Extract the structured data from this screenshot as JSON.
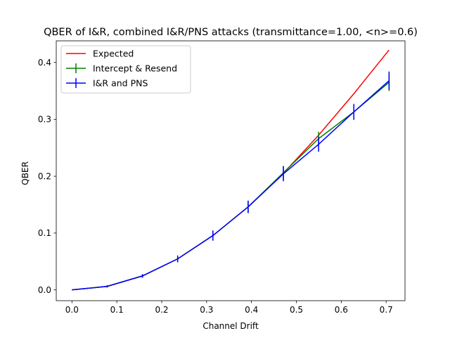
{
  "chart_data": {
    "type": "line",
    "title": "QBER of I&R, combined I&R/PNS attacks (transmittance=1.00, <n>=0.6)",
    "xlabel": "Channel Drift",
    "ylabel": "QBER",
    "xlim": [
      -0.035,
      0.742
    ],
    "ylim": [
      -0.019,
      0.438
    ],
    "xticks": [
      0.0,
      0.1,
      0.2,
      0.3,
      0.4,
      0.5,
      0.6,
      0.7
    ],
    "yticks": [
      0.0,
      0.1,
      0.2,
      0.3,
      0.4
    ],
    "xtick_labels": [
      "0.0",
      "0.1",
      "0.2",
      "0.3",
      "0.4",
      "0.5",
      "0.6",
      "0.7"
    ],
    "ytick_labels": [
      "0.0",
      "0.1",
      "0.2",
      "0.3",
      "0.4"
    ],
    "grid": false,
    "legend_position": "upper-left",
    "x": [
      0.0,
      0.0785,
      0.157,
      0.2355,
      0.314,
      0.3925,
      0.471,
      0.5495,
      0.628,
      0.7065
    ],
    "series": [
      {
        "name": "Expected",
        "color": "#ff0000",
        "values": [
          0.0,
          0.0061,
          0.0245,
          0.0545,
          0.0955,
          0.146,
          0.205,
          0.272,
          0.345,
          0.422
        ],
        "errors": null
      },
      {
        "name": "Intercept & Resend",
        "color": "#008000",
        "values": [
          0.0,
          0.0062,
          0.0245,
          0.0545,
          0.0955,
          0.146,
          0.206,
          0.266,
          0.313,
          0.365
        ],
        "errors": [
          0.0,
          0.002,
          0.003,
          0.005,
          0.008,
          0.01,
          0.012,
          0.012,
          0.013,
          0.015
        ]
      },
      {
        "name": "I&R and PNS",
        "color": "#0000ff",
        "values": [
          0.0,
          0.0062,
          0.0245,
          0.0545,
          0.0955,
          0.146,
          0.204,
          0.256,
          0.313,
          0.368
        ],
        "errors": [
          0.0,
          0.002,
          0.003,
          0.006,
          0.009,
          0.011,
          0.013,
          0.013,
          0.014,
          0.016
        ]
      }
    ]
  }
}
